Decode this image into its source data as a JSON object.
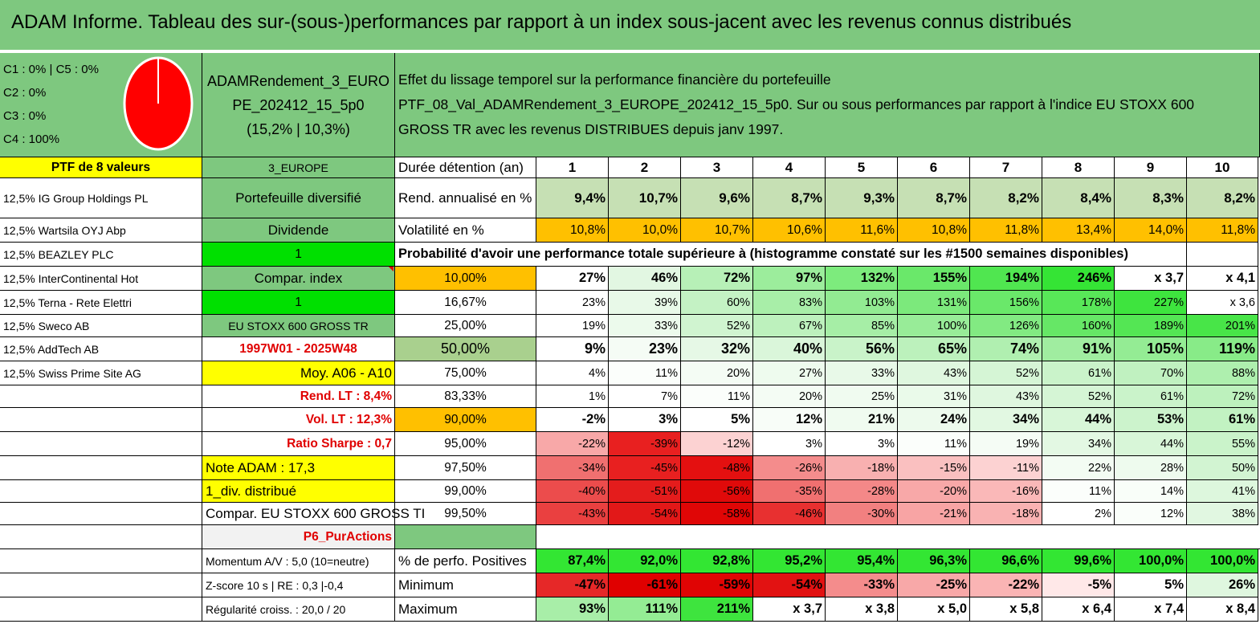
{
  "title": "ADAM Informe. Tableau des sur-(sous-)performances par rapport à un index sous-jacent avec les revenus connus distribués",
  "legend": [
    "C1 : 0% | C5 : 0%",
    "C2 : 0%",
    "C3 : 0%",
    "C4 : 100%"
  ],
  "pie": {
    "color": "#ff0000",
    "C4_share": 100
  },
  "portfolio_name": [
    "ADAMRendement_3_EURO",
    "PE_202412_15_5p0",
    "(15,2% | 10,3%)"
  ],
  "description": [
    "Effet du lissage temporel sur la performance financière du portefeuille",
    "PTF_08_Val_ADAMRendement_3_EUROPE_202412_15_5p0. Sur ou sous performances par rapport à l'indice EU STOXX 600",
    "GROSS TR avec les revenus DISTRIBUES depuis janv 1997."
  ],
  "ptf_count": "PTF de 8 valeurs",
  "region": "3_EUROPE",
  "holdings": [
    "12,5% IG Group Holdings PL",
    "12,5% Wartsila OYJ Abp",
    "12,5% BEAZLEY PLC",
    "12,5% InterContinental Hot",
    "12,5% Terna - Rete Elettri",
    "12,5% Sweco AB",
    "12,5% AddTech AB",
    "12,5% Swiss Prime Site AG"
  ],
  "info": {
    "diversified": "Portefeuille diversifié",
    "dividend": "Dividende",
    "one_a": "1",
    "compar_index": "Compar. index",
    "one_b": "1",
    "index_name": "EU STOXX 600 GROSS TR",
    "period": "1997W01 - 2025W48",
    "moy": "Moy. A06 - A10",
    "rend_lt": "Rend. LT : 8,4%",
    "vol_lt": "Vol. LT : 12,3%",
    "sharpe": "Ratio Sharpe : 0,7",
    "note": "Note ADAM : 17,3",
    "div": "1_div. distribué",
    "compar": "Compar. EU STOXX 600 GROSS TI",
    "p6": "P6_PurActions",
    "momentum": "Momentum A/V : 5,0 (10=neutre)",
    "zscore": "Z-score 10 s | RE : 0,3 |-0,4",
    "regularite": "Régularité croiss. : 20,0 / 20"
  },
  "table": {
    "header_label": "Durée détention (an)",
    "years": [
      "1",
      "2",
      "3",
      "4",
      "5",
      "6",
      "7",
      "8",
      "9",
      "10"
    ],
    "rend_label": "Rend. annualisé en %",
    "rend": [
      "9,4%",
      "10,7%",
      "9,6%",
      "8,7%",
      "9,3%",
      "8,7%",
      "8,2%",
      "8,4%",
      "8,3%",
      "8,2%"
    ],
    "vol_label": "Volatilité en %",
    "vol": [
      "10,8%",
      "10,0%",
      "10,7%",
      "10,6%",
      "11,6%",
      "10,8%",
      "11,8%",
      "13,4%",
      "14,0%",
      "11,8%"
    ],
    "prob_title": "Probabilité d'avoir une performance totale supérieure à (histogramme constaté sur les #1500 semaines disponibles)",
    "prob_rows": [
      {
        "p": "10,00%",
        "v": [
          "27%",
          "46%",
          "72%",
          "97%",
          "132%",
          "155%",
          "194%",
          "246%",
          "x 3,7",
          "x 4,1"
        ],
        "bg": [
          "#ffffff",
          "#e2f7e2",
          "#b7f0b7",
          "#9ced9c",
          "#7deb7d",
          "#6ae86a",
          "#50e650",
          "#35e435",
          "#ffffff",
          "#ffffff"
        ]
      },
      {
        "p": "16,67%",
        "v": [
          "23%",
          "39%",
          "60%",
          "83%",
          "103%",
          "131%",
          "156%",
          "178%",
          "227%",
          "x 3,6"
        ],
        "bg": [
          "#ffffff",
          "#e8f9e8",
          "#c4f2c4",
          "#a8eea8",
          "#92eb92",
          "#7ce97c",
          "#6ae86a",
          "#58e758",
          "#3ee43e",
          "#ffffff"
        ]
      },
      {
        "p": "25,00%",
        "v": [
          "19%",
          "33%",
          "52%",
          "67%",
          "85%",
          "100%",
          "126%",
          "160%",
          "189%",
          "201%"
        ],
        "bg": [
          "#ffffff",
          "#ecfaec",
          "#d0f4d0",
          "#bdf1bd",
          "#a6eea6",
          "#98ec98",
          "#82ea82",
          "#66e766",
          "#54e654",
          "#48e548"
        ]
      },
      {
        "p": "50,00%",
        "v": [
          "9%",
          "23%",
          "32%",
          "40%",
          "56%",
          "65%",
          "74%",
          "91%",
          "105%",
          "119%"
        ],
        "bg": [
          "#ffffff",
          "#f5fcf5",
          "#e6f8e6",
          "#daf6da",
          "#c9f3c9",
          "#bcf1bc",
          "#b0efb0",
          "#a0eda0",
          "#94ec94",
          "#88eb88"
        ],
        "bold": true
      },
      {
        "p": "75,00%",
        "v": [
          "4%",
          "11%",
          "20%",
          "27%",
          "33%",
          "43%",
          "52%",
          "61%",
          "70%",
          "88%"
        ],
        "bg": [
          "#ffffff",
          "#fbfefb",
          "#f4fcf4",
          "#eefbee",
          "#e8f9e8",
          "#dff7df",
          "#d5f5d5",
          "#caf3ca",
          "#c0f1c0",
          "#aeefae"
        ]
      },
      {
        "p": "83,33%",
        "v": [
          "1%",
          "7%",
          "11%",
          "20%",
          "25%",
          "31%",
          "43%",
          "52%",
          "61%",
          "72%"
        ],
        "bg": [
          "#ffffff",
          "#ffffff",
          "#fbfefb",
          "#f4fcf4",
          "#f0fbf0",
          "#eafaea",
          "#dff7df",
          "#d5f5d5",
          "#caf3ca",
          "#bdf1bd"
        ]
      },
      {
        "p": "90,00%",
        "v": [
          "-2%",
          "3%",
          "5%",
          "12%",
          "21%",
          "24%",
          "34%",
          "44%",
          "53%",
          "61%"
        ],
        "bg": [
          "#ffffff",
          "#ffffff",
          "#ffffff",
          "#f8fdf8",
          "#f0fbf0",
          "#edfaed",
          "#e2f8e2",
          "#d8f6d8",
          "#ccf3cc",
          "#c2f2c2"
        ],
        "bold": true
      },
      {
        "p": "95,00%",
        "v": [
          "-22%",
          "-39%",
          "-12%",
          "3%",
          "3%",
          "11%",
          "19%",
          "34%",
          "44%",
          "55%"
        ],
        "bg": [
          "#f8a8a8",
          "#e82020",
          "#fcd2d2",
          "#ffffff",
          "#ffffff",
          "#fbfefb",
          "#f5fcf5",
          "#e3f8e3",
          "#d8f6d8",
          "#caf3ca"
        ]
      },
      {
        "p": "97,50%",
        "v": [
          "-34%",
          "-45%",
          "-48%",
          "-26%",
          "-18%",
          "-15%",
          "-11%",
          "22%",
          "28%",
          "50%"
        ],
        "bg": [
          "#f07070",
          "#e82020",
          "#e41010",
          "#f48c8c",
          "#f8b0b0",
          "#fac0c0",
          "#fcd2d2",
          "#f3fcf3",
          "#eefbee",
          "#d2f4d2"
        ]
      },
      {
        "p": "99,00%",
        "v": [
          "-40%",
          "-51%",
          "-56%",
          "-35%",
          "-28%",
          "-20%",
          "-16%",
          "11%",
          "14%",
          "41%"
        ],
        "bg": [
          "#ec4c4c",
          "#e41c1c",
          "#e00a0a",
          "#f07070",
          "#f48888",
          "#f8a8a8",
          "#fab8b8",
          "#fbfefb",
          "#f9fef9",
          "#ddf7dd"
        ]
      },
      {
        "p": "99,50%",
        "v": [
          "-43%",
          "-54%",
          "-58%",
          "-46%",
          "-30%",
          "-21%",
          "-18%",
          "2%",
          "12%",
          "38%"
        ],
        "bg": [
          "#ea4040",
          "#e21818",
          "#e00606",
          "#e83030",
          "#f28080",
          "#f8a4a4",
          "#f9b2b2",
          "#ffffff",
          "#fafefa",
          "#e1f7e1"
        ]
      }
    ],
    "pos_label": "% de perfo. Positives",
    "pos": [
      "87,4%",
      "92,0%",
      "92,8%",
      "95,2%",
      "95,4%",
      "96,3%",
      "96,6%",
      "99,6%",
      "100,0%",
      "100,0%"
    ],
    "min_label": "Minimum",
    "min": [
      "-47%",
      "-61%",
      "-59%",
      "-54%",
      "-33%",
      "-25%",
      "-22%",
      "-5%",
      "5%",
      "26%"
    ],
    "min_bg": [
      "#e62828",
      "#e00000",
      "#e00404",
      "#e21212",
      "#f48c8c",
      "#f8a8a8",
      "#fab4b4",
      "#ffe8e8",
      "#ffffff",
      "#dff7df"
    ],
    "max_label": "Maximum",
    "max": [
      "93%",
      "111%",
      "211%",
      "x 3,7",
      "x 3,8",
      "x 5,0",
      "x 5,8",
      "x 6,4",
      "x 7,4",
      "x 8,4"
    ],
    "max_bg": [
      "#a8eea8",
      "#94ec94",
      "#3ee43e",
      "#ffffff",
      "#ffffff",
      "#ffffff",
      "#ffffff",
      "#ffffff",
      "#ffffff",
      "#ffffff"
    ]
  },
  "colors": {
    "header_green": "#7ec87f",
    "yellow": "#ffff00",
    "orange": "#ffc000",
    "bright_green": "#00e000",
    "pos_green": "#33e633"
  }
}
